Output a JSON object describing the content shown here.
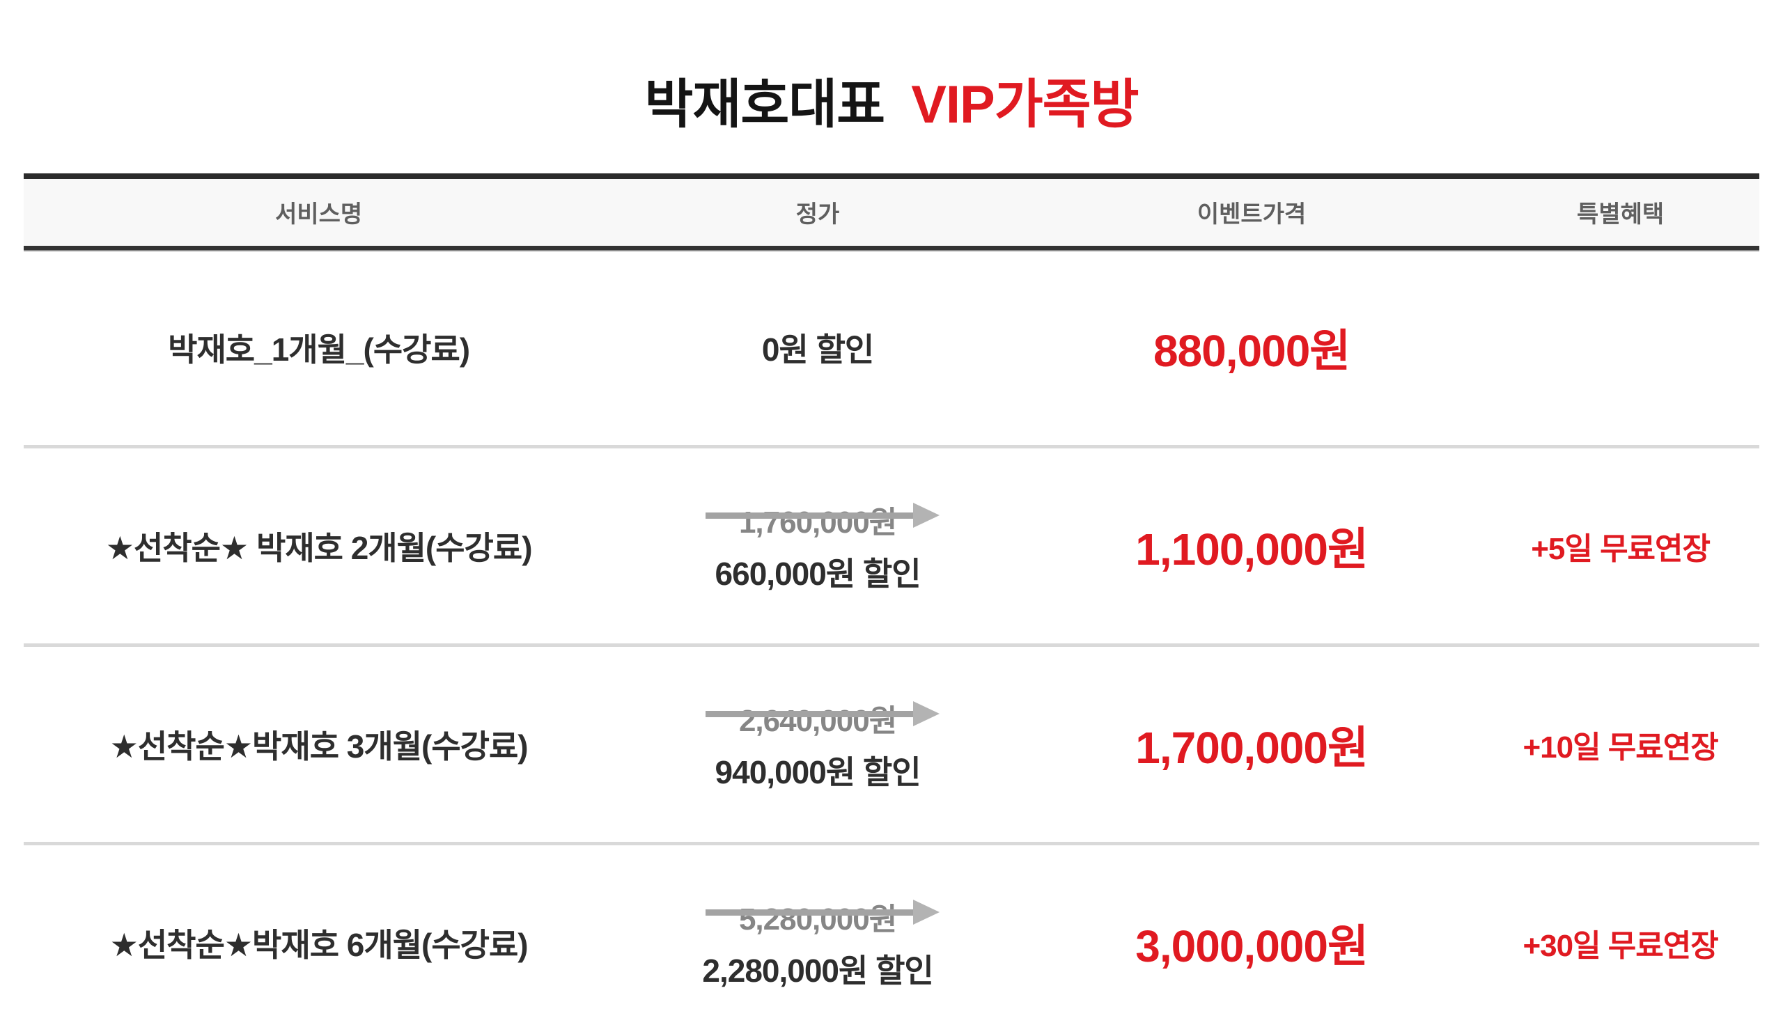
{
  "title": {
    "black_part": "박재호대표",
    "red_part": "VIP가족방"
  },
  "colors": {
    "accent_red": "#e01a21",
    "text_dark": "#2e2e2e",
    "strike_gray": "#a3a3a3",
    "old_price_gray": "#868686",
    "header_text_gray": "#5f5f5f",
    "header_bg": "#f8f8f8",
    "dark_border": "#2b2b2b",
    "row_divider": "#d9d9d9"
  },
  "table": {
    "headers": {
      "service": "서비스명",
      "regular_price": "정가",
      "event_price": "이벤트가격",
      "benefit": "특별혜택"
    },
    "rows": [
      {
        "service": "박재호_1개월_(수강료)",
        "original_price": "",
        "discount": "0원 할인",
        "event_price": "880,000원",
        "benefit": ""
      },
      {
        "service": "★선착순★ 박재호 2개월(수강료)",
        "original_price": "1,760,000원",
        "discount": "660,000원 할인",
        "event_price": "1,100,000원",
        "benefit": "+5일 무료연장"
      },
      {
        "service": "★선착순★박재호 3개월(수강료)",
        "original_price": "2,640,000원",
        "discount": "940,000원 할인",
        "event_price": "1,700,000원",
        "benefit": "+10일 무료연장"
      },
      {
        "service": "★선착순★박재호 6개월(수강료)",
        "original_price": "5,280,000원",
        "discount": "2,280,000원 할인",
        "event_price": "3,000,000원",
        "benefit": "+30일 무료연장"
      }
    ]
  }
}
